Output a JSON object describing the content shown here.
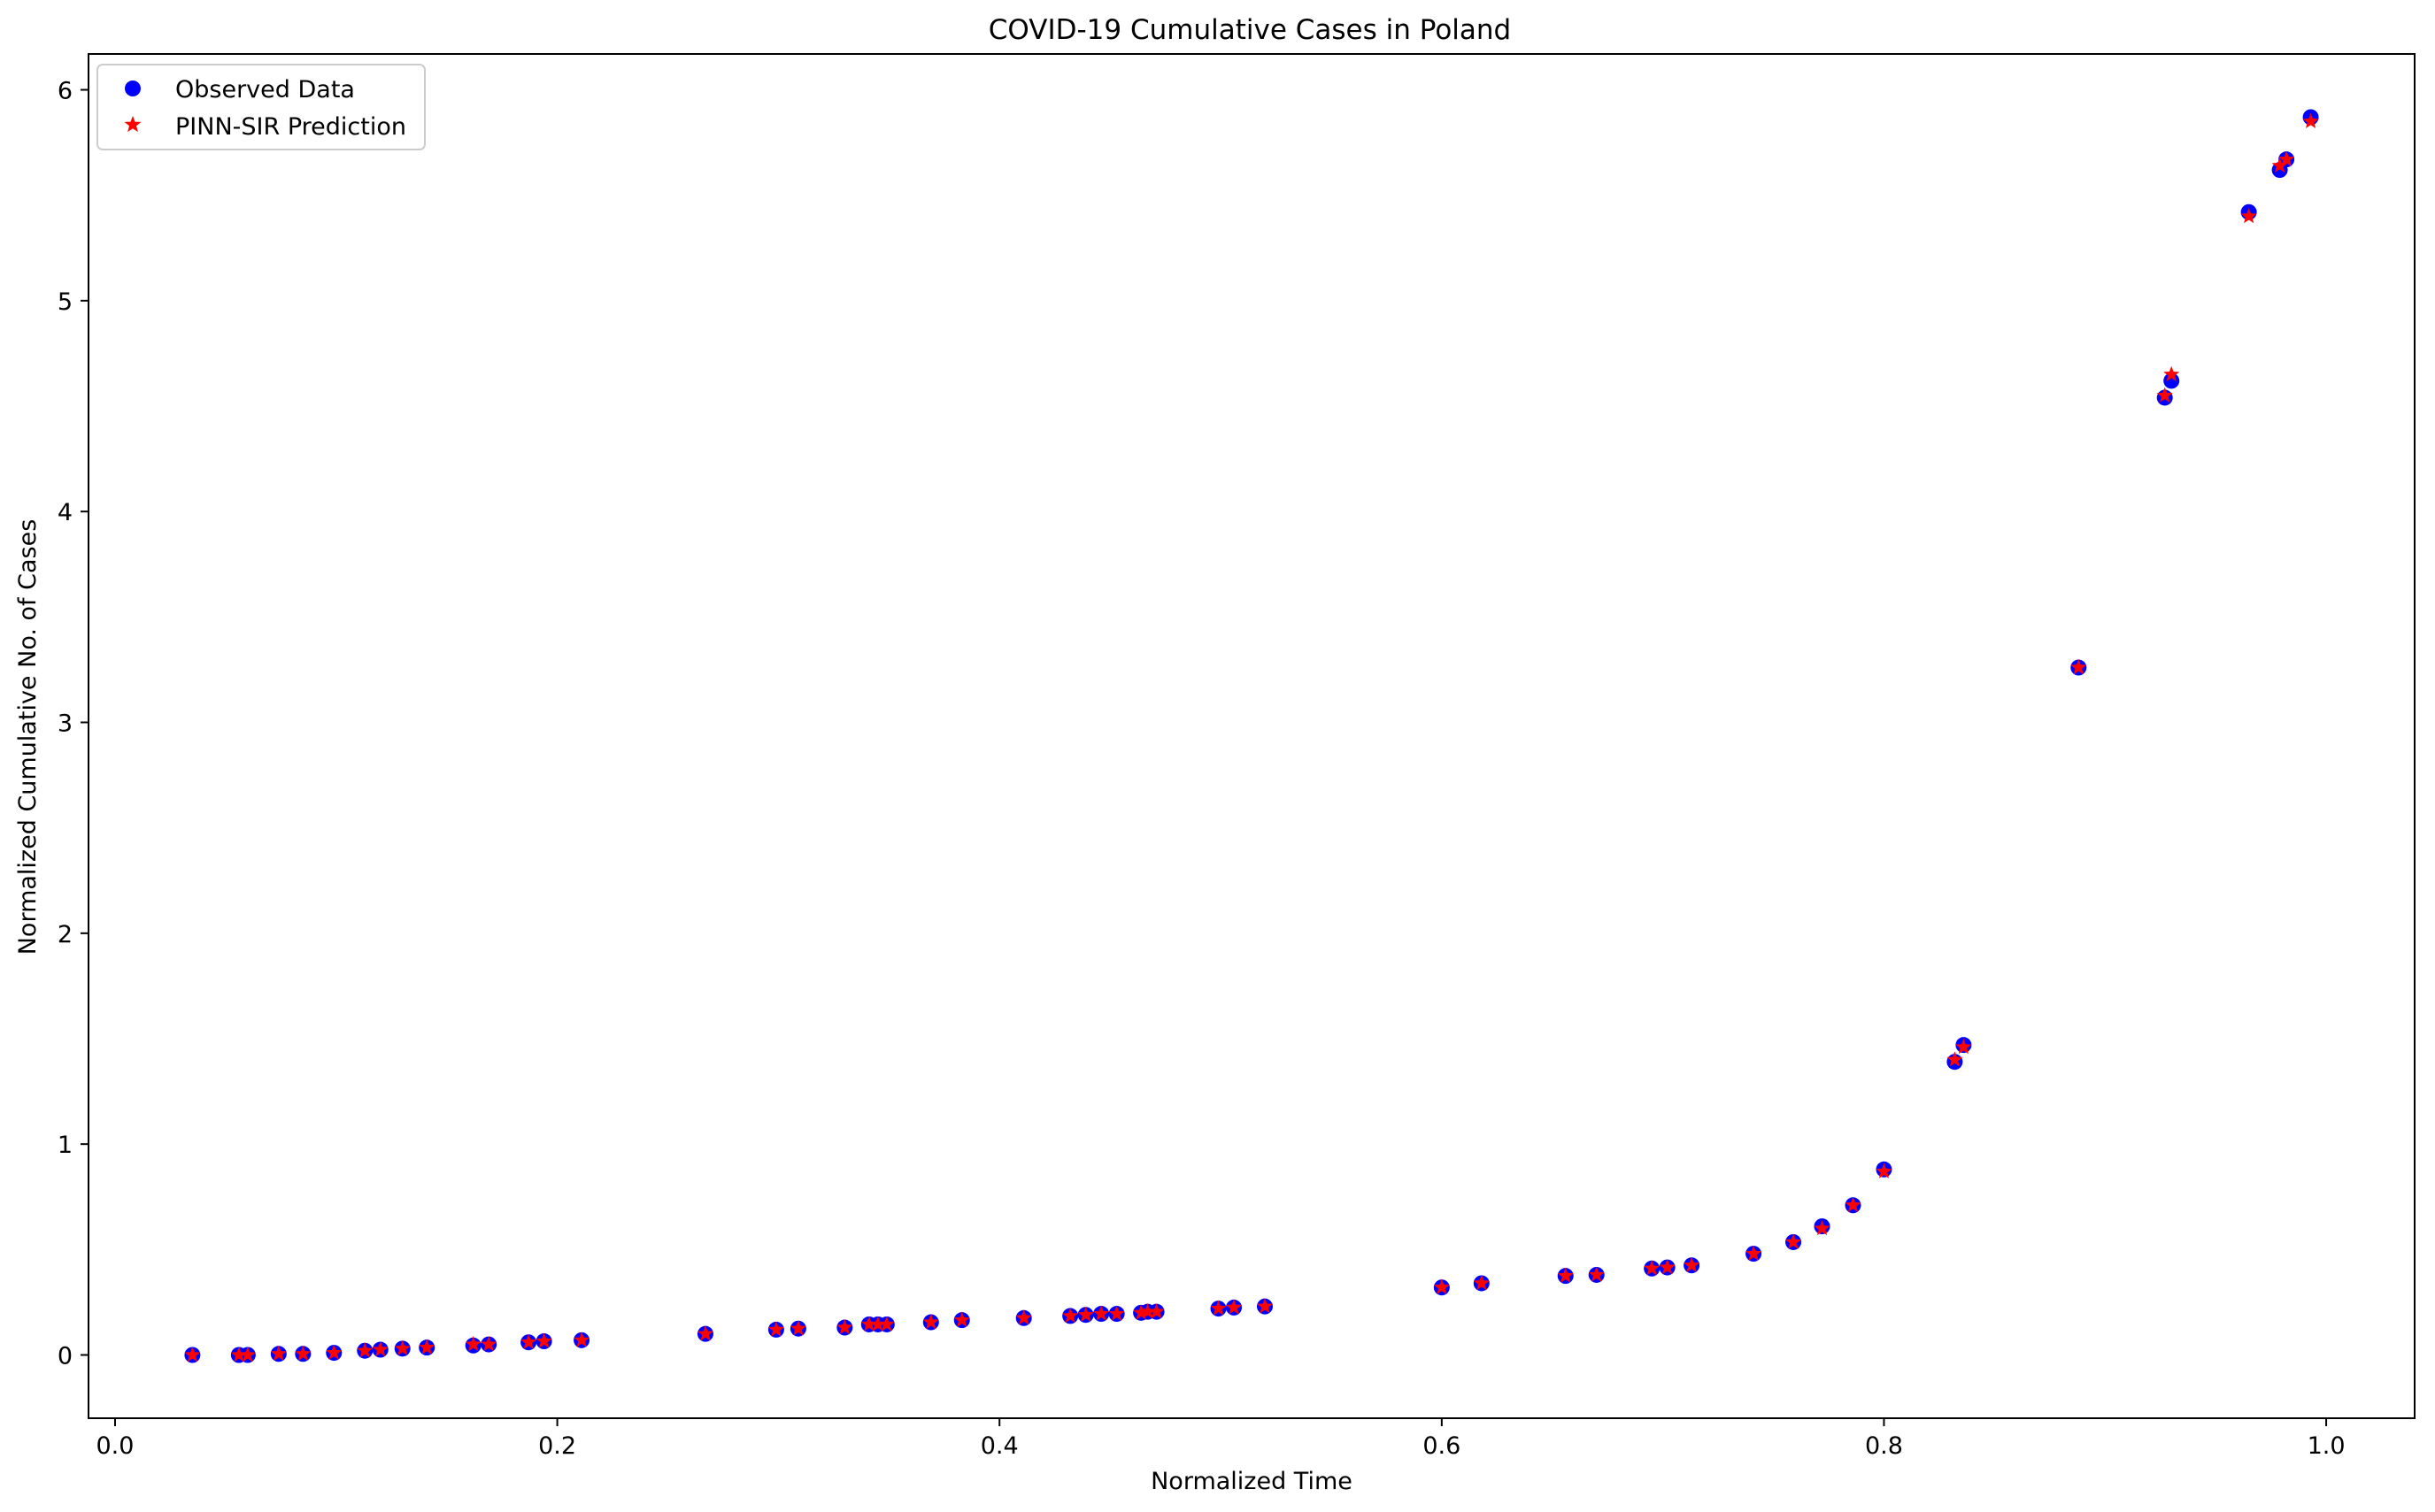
{
  "chart_data": {
    "type": "scatter",
    "title": "COVID-19 Cumulative Cases in Poland",
    "xlabel": "Normalized Time",
    "ylabel": "Normalized Cumulative No. of Cases",
    "xlim": [
      -0.012,
      1.04
    ],
    "ylim": [
      -0.3,
      6.17
    ],
    "xticks": [
      0.0,
      0.2,
      0.4,
      0.6,
      0.8,
      1.0
    ],
    "xtick_labels": [
      "0.0",
      "0.2",
      "0.4",
      "0.6",
      "0.8",
      "1.0"
    ],
    "yticks": [
      0,
      1,
      2,
      3,
      4,
      5,
      6
    ],
    "ytick_labels": [
      "0",
      "1",
      "2",
      "3",
      "4",
      "5",
      "6"
    ],
    "grid": false,
    "legend_position": "upper-left",
    "series": [
      {
        "name": "Observed Data",
        "marker": "circle",
        "color": "#0000ff",
        "x": [
          0.035,
          0.056,
          0.06,
          0.074,
          0.085,
          0.099,
          0.113,
          0.12,
          0.13,
          0.141,
          0.162,
          0.169,
          0.187,
          0.194,
          0.211,
          0.267,
          0.299,
          0.309,
          0.33,
          0.341,
          0.345,
          0.349,
          0.369,
          0.383,
          0.411,
          0.432,
          0.439,
          0.446,
          0.453,
          0.464,
          0.467,
          0.471,
          0.499,
          0.506,
          0.52,
          0.6,
          0.618,
          0.656,
          0.67,
          0.695,
          0.702,
          0.713,
          0.741,
          0.759,
          0.772,
          0.786,
          0.8,
          0.832,
          0.836,
          0.888,
          0.927,
          0.93,
          0.965,
          0.979,
          0.982,
          0.993
        ],
        "y": [
          0.0,
          0.0,
          0.0,
          0.005,
          0.005,
          0.01,
          0.02,
          0.025,
          0.03,
          0.035,
          0.045,
          0.05,
          0.06,
          0.065,
          0.07,
          0.1,
          0.12,
          0.125,
          0.13,
          0.145,
          0.145,
          0.145,
          0.155,
          0.165,
          0.175,
          0.185,
          0.19,
          0.195,
          0.195,
          0.2,
          0.205,
          0.205,
          0.22,
          0.225,
          0.23,
          0.32,
          0.34,
          0.375,
          0.38,
          0.41,
          0.415,
          0.425,
          0.48,
          0.535,
          0.61,
          0.71,
          0.88,
          1.39,
          1.47,
          3.26,
          4.54,
          4.62,
          5.42,
          5.62,
          5.67,
          5.87
        ]
      },
      {
        "name": "PINN-SIR Prediction",
        "marker": "star",
        "color": "#ff0000",
        "x": [
          0.035,
          0.056,
          0.06,
          0.074,
          0.085,
          0.099,
          0.113,
          0.12,
          0.13,
          0.141,
          0.162,
          0.169,
          0.187,
          0.194,
          0.211,
          0.267,
          0.299,
          0.309,
          0.33,
          0.341,
          0.345,
          0.349,
          0.369,
          0.383,
          0.411,
          0.432,
          0.439,
          0.446,
          0.453,
          0.464,
          0.467,
          0.471,
          0.499,
          0.506,
          0.52,
          0.6,
          0.618,
          0.656,
          0.67,
          0.695,
          0.702,
          0.713,
          0.741,
          0.759,
          0.772,
          0.786,
          0.8,
          0.832,
          0.836,
          0.888,
          0.927,
          0.93,
          0.965,
          0.979,
          0.982,
          0.993
        ],
        "y": [
          0.0,
          0.0,
          0.0,
          0.005,
          0.005,
          0.01,
          0.02,
          0.025,
          0.03,
          0.035,
          0.05,
          0.05,
          0.06,
          0.065,
          0.07,
          0.1,
          0.12,
          0.125,
          0.13,
          0.145,
          0.145,
          0.145,
          0.155,
          0.165,
          0.175,
          0.185,
          0.19,
          0.195,
          0.195,
          0.2,
          0.205,
          0.205,
          0.22,
          0.225,
          0.23,
          0.32,
          0.34,
          0.375,
          0.38,
          0.41,
          0.415,
          0.425,
          0.48,
          0.535,
          0.6,
          0.71,
          0.87,
          1.4,
          1.46,
          3.26,
          4.55,
          4.65,
          5.4,
          5.64,
          5.67,
          5.85
        ]
      }
    ]
  }
}
